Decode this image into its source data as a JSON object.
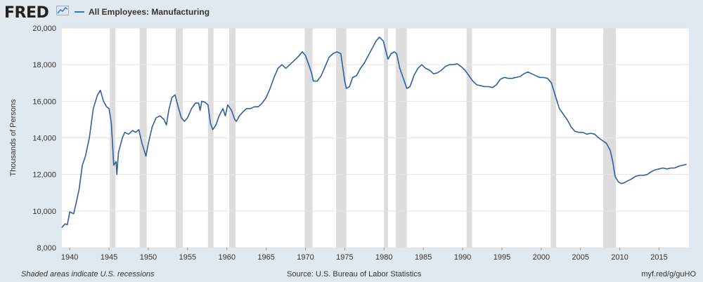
{
  "brand": {
    "name": "FRED"
  },
  "footer": {
    "recession_note": "Shaded areas indicate U.S. recessions",
    "source": "Source: U.S. Bureau of Labor Statistics",
    "short_link": "myf.red/g/guHO"
  },
  "colors": {
    "series": "#2f5f9e",
    "recession": "#dddddd",
    "plot_bg": "#ffffff",
    "page_bg": "#e1e9f0",
    "grid": "#e4e4e4"
  },
  "chart_data": {
    "type": "line",
    "xlabel": "",
    "ylabel": "Thousands of Persons",
    "xlim": [
      1939.0,
      2018.8
    ],
    "ylim": [
      8000,
      20000
    ],
    "x_ticks": [
      1940,
      1945,
      1950,
      1955,
      1960,
      1965,
      1970,
      1975,
      1980,
      1985,
      1990,
      1995,
      2000,
      2005,
      2010,
      2015
    ],
    "y_ticks": [
      8000,
      10000,
      12000,
      14000,
      16000,
      18000,
      20000
    ],
    "y_tick_labels": [
      "8,000",
      "10,000",
      "12,000",
      "14,000",
      "16,000",
      "18,000",
      "20,000"
    ],
    "grid": true,
    "legend": "top-left",
    "recessions": [
      [
        1945.1,
        1945.8
      ],
      [
        1948.9,
        1949.8
      ],
      [
        1953.5,
        1954.4
      ],
      [
        1957.6,
        1958.3
      ],
      [
        1960.3,
        1961.1
      ],
      [
        1969.9,
        1970.9
      ],
      [
        1973.9,
        1975.2
      ],
      [
        1980.0,
        1980.5
      ],
      [
        1981.5,
        1982.9
      ],
      [
        1990.5,
        1991.2
      ],
      [
        2001.2,
        2001.9
      ],
      [
        2007.9,
        2009.5
      ]
    ],
    "series": [
      {
        "name": "All Employees: Manufacturing",
        "points": [
          [
            1939.0,
            9100
          ],
          [
            1939.4,
            9300
          ],
          [
            1939.7,
            9250
          ],
          [
            1940.0,
            9950
          ],
          [
            1940.5,
            9850
          ],
          [
            1940.8,
            10400
          ],
          [
            1941.2,
            11200
          ],
          [
            1941.6,
            12500
          ],
          [
            1942.0,
            13000
          ],
          [
            1942.5,
            14000
          ],
          [
            1943.0,
            15600
          ],
          [
            1943.5,
            16300
          ],
          [
            1943.9,
            16600
          ],
          [
            1944.3,
            16000
          ],
          [
            1944.7,
            15700
          ],
          [
            1945.0,
            15600
          ],
          [
            1945.3,
            14800
          ],
          [
            1945.6,
            12500
          ],
          [
            1945.9,
            12700
          ],
          [
            1946.0,
            12000
          ],
          [
            1946.2,
            13200
          ],
          [
            1946.7,
            14000
          ],
          [
            1947.0,
            14300
          ],
          [
            1947.5,
            14200
          ],
          [
            1948.0,
            14400
          ],
          [
            1948.4,
            14300
          ],
          [
            1948.8,
            14450
          ],
          [
            1949.2,
            13700
          ],
          [
            1949.7,
            13000
          ],
          [
            1950.0,
            13700
          ],
          [
            1950.5,
            14600
          ],
          [
            1951.0,
            15100
          ],
          [
            1951.5,
            15200
          ],
          [
            1952.0,
            15000
          ],
          [
            1952.3,
            14700
          ],
          [
            1952.6,
            15500
          ],
          [
            1953.0,
            16200
          ],
          [
            1953.4,
            16350
          ],
          [
            1953.8,
            15700
          ],
          [
            1954.2,
            15100
          ],
          [
            1954.6,
            14900
          ],
          [
            1955.0,
            15100
          ],
          [
            1955.5,
            15600
          ],
          [
            1956.0,
            15900
          ],
          [
            1956.4,
            15900
          ],
          [
            1956.6,
            15500
          ],
          [
            1956.8,
            16000
          ],
          [
            1957.2,
            15950
          ],
          [
            1957.6,
            15800
          ],
          [
            1957.9,
            14800
          ],
          [
            1958.2,
            14450
          ],
          [
            1958.6,
            14700
          ],
          [
            1959.0,
            15200
          ],
          [
            1959.5,
            15600
          ],
          [
            1959.8,
            15200
          ],
          [
            1960.1,
            15800
          ],
          [
            1960.6,
            15500
          ],
          [
            1961.0,
            15000
          ],
          [
            1961.2,
            14900
          ],
          [
            1961.6,
            15200
          ],
          [
            1962.0,
            15400
          ],
          [
            1962.5,
            15600
          ],
          [
            1963.0,
            15600
          ],
          [
            1963.5,
            15700
          ],
          [
            1964.0,
            15700
          ],
          [
            1964.5,
            15900
          ],
          [
            1965.0,
            16200
          ],
          [
            1965.5,
            16700
          ],
          [
            1966.0,
            17300
          ],
          [
            1966.5,
            17800
          ],
          [
            1967.0,
            18000
          ],
          [
            1967.5,
            17800
          ],
          [
            1968.0,
            18000
          ],
          [
            1968.5,
            18200
          ],
          [
            1969.0,
            18400
          ],
          [
            1969.6,
            18700
          ],
          [
            1970.0,
            18500
          ],
          [
            1970.5,
            17900
          ],
          [
            1970.8,
            17500
          ],
          [
            1971.0,
            17100
          ],
          [
            1971.5,
            17100
          ],
          [
            1972.0,
            17400
          ],
          [
            1972.5,
            17900
          ],
          [
            1973.0,
            18400
          ],
          [
            1973.5,
            18600
          ],
          [
            1974.0,
            18700
          ],
          [
            1974.5,
            18600
          ],
          [
            1975.0,
            17100
          ],
          [
            1975.2,
            16700
          ],
          [
            1975.6,
            16800
          ],
          [
            1976.0,
            17300
          ],
          [
            1976.5,
            17400
          ],
          [
            1977.0,
            17800
          ],
          [
            1977.5,
            18100
          ],
          [
            1978.0,
            18500
          ],
          [
            1978.5,
            18900
          ],
          [
            1979.0,
            19300
          ],
          [
            1979.4,
            19500
          ],
          [
            1979.9,
            19300
          ],
          [
            1980.2,
            18800
          ],
          [
            1980.5,
            18300
          ],
          [
            1980.9,
            18600
          ],
          [
            1981.3,
            18700
          ],
          [
            1981.6,
            18600
          ],
          [
            1982.0,
            17800
          ],
          [
            1982.5,
            17200
          ],
          [
            1982.9,
            16700
          ],
          [
            1983.3,
            16800
          ],
          [
            1983.8,
            17400
          ],
          [
            1984.3,
            17800
          ],
          [
            1984.8,
            18000
          ],
          [
            1985.3,
            17800
          ],
          [
            1985.8,
            17700
          ],
          [
            1986.3,
            17500
          ],
          [
            1986.8,
            17550
          ],
          [
            1987.3,
            17700
          ],
          [
            1987.8,
            17900
          ],
          [
            1988.3,
            18000
          ],
          [
            1988.8,
            18000
          ],
          [
            1989.3,
            18050
          ],
          [
            1989.8,
            17900
          ],
          [
            1990.3,
            17700
          ],
          [
            1990.8,
            17400
          ],
          [
            1991.3,
            17100
          ],
          [
            1991.8,
            16900
          ],
          [
            1992.3,
            16850
          ],
          [
            1992.8,
            16800
          ],
          [
            1993.3,
            16800
          ],
          [
            1993.8,
            16750
          ],
          [
            1994.3,
            16900
          ],
          [
            1994.8,
            17200
          ],
          [
            1995.3,
            17300
          ],
          [
            1995.8,
            17250
          ],
          [
            1996.3,
            17250
          ],
          [
            1996.8,
            17300
          ],
          [
            1997.3,
            17350
          ],
          [
            1997.8,
            17500
          ],
          [
            1998.3,
            17600
          ],
          [
            1998.8,
            17500
          ],
          [
            1999.3,
            17400
          ],
          [
            1999.8,
            17300
          ],
          [
            2000.3,
            17300
          ],
          [
            2000.8,
            17250
          ],
          [
            2001.3,
            17000
          ],
          [
            2001.8,
            16300
          ],
          [
            2002.3,
            15600
          ],
          [
            2002.8,
            15300
          ],
          [
            2003.3,
            15000
          ],
          [
            2003.8,
            14600
          ],
          [
            2004.3,
            14350
          ],
          [
            2004.8,
            14300
          ],
          [
            2005.3,
            14300
          ],
          [
            2005.8,
            14200
          ],
          [
            2006.3,
            14250
          ],
          [
            2006.8,
            14200
          ],
          [
            2007.3,
            14000
          ],
          [
            2007.8,
            13850
          ],
          [
            2008.3,
            13700
          ],
          [
            2008.8,
            13300
          ],
          [
            2009.1,
            12700
          ],
          [
            2009.4,
            11900
          ],
          [
            2009.8,
            11600
          ],
          [
            2010.2,
            11500
          ],
          [
            2010.6,
            11550
          ],
          [
            2011.0,
            11650
          ],
          [
            2011.5,
            11750
          ],
          [
            2012.0,
            11900
          ],
          [
            2012.5,
            11950
          ],
          [
            2013.0,
            11950
          ],
          [
            2013.5,
            12000
          ],
          [
            2014.0,
            12150
          ],
          [
            2014.5,
            12250
          ],
          [
            2015.0,
            12300
          ],
          [
            2015.5,
            12350
          ],
          [
            2016.0,
            12300
          ],
          [
            2016.5,
            12350
          ],
          [
            2017.0,
            12350
          ],
          [
            2017.5,
            12450
          ],
          [
            2018.0,
            12500
          ],
          [
            2018.5,
            12550
          ]
        ]
      }
    ]
  }
}
